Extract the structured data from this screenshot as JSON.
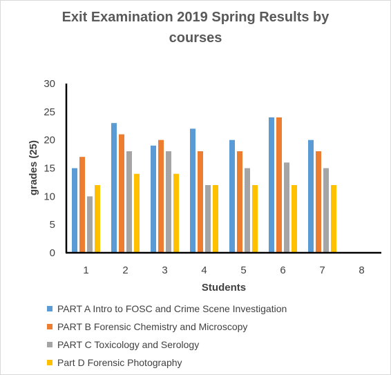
{
  "chart_data": {
    "type": "bar",
    "title_line1": "Exit Examination 2019 Spring Results by",
    "title_line2": "courses",
    "xlabel": "Students",
    "ylabel": "grades (25)",
    "categories": [
      "1",
      "2",
      "3",
      "4",
      "5",
      "6",
      "7",
      "8"
    ],
    "ylim": [
      0,
      30
    ],
    "yticks": [
      0,
      5,
      10,
      15,
      20,
      25,
      30
    ],
    "grid": false,
    "legend_position": "bottom",
    "series": [
      {
        "name": "PART A Intro to FOSC and Crime Scene Investigation",
        "color": "#5b9bd5",
        "values": [
          15,
          23,
          19,
          22,
          20,
          24,
          20,
          null
        ]
      },
      {
        "name": "PART B Forensic Chemistry and Microscopy",
        "color": "#ed7d31",
        "values": [
          17,
          21,
          20,
          18,
          18,
          24,
          18,
          null
        ]
      },
      {
        "name": "PART C Toxicology and Serology",
        "color": "#a5a5a5",
        "values": [
          10,
          18,
          18,
          12,
          15,
          16,
          15,
          null
        ]
      },
      {
        "name": "Part D Forensic Photography",
        "color": "#ffc000",
        "values": [
          12,
          14,
          14,
          12,
          12,
          12,
          12,
          null
        ]
      }
    ]
  }
}
